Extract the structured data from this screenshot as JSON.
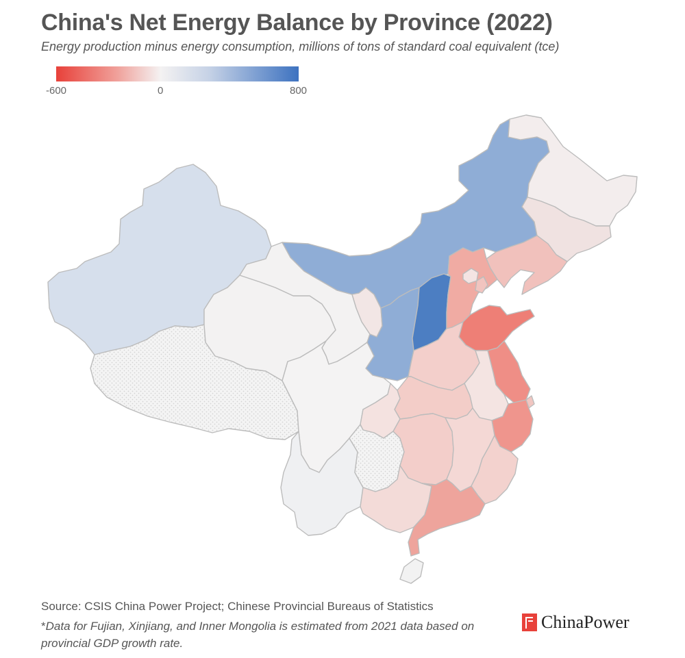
{
  "header": {
    "title": "China's Net Energy Balance by Province (2022)",
    "subtitle": "Energy production minus energy consumption, millions of tons of standard coal equivalent (tce)"
  },
  "legend": {
    "min_label": "-600",
    "mid_label": "0",
    "max_label": "800",
    "min_color": "#e8413a",
    "mid_color": "#f4f2f2",
    "max_color": "#3d72c0"
  },
  "colors": {
    "no_data_fill": "#f4f4f4",
    "no_data_dots": "#d4d4d4",
    "border": "#bcbcbc"
  },
  "map": {
    "provinces": [
      {
        "id": "xinjiang",
        "fill": "#d6dfec"
      },
      {
        "id": "tibet",
        "fill": "nodata"
      },
      {
        "id": "qinghai",
        "fill": "#f3f2f2"
      },
      {
        "id": "gansu",
        "fill": "#f3f2f2"
      },
      {
        "id": "inner-mongolia",
        "fill": "#8fadd6"
      },
      {
        "id": "heilongjiang",
        "fill": "#f3eded"
      },
      {
        "id": "jilin",
        "fill": "#f0e2e1"
      },
      {
        "id": "liaoning",
        "fill": "#f1c1bc"
      },
      {
        "id": "ningxia",
        "fill": "#f2e6e5"
      },
      {
        "id": "shaanxi",
        "fill": "#8fadd6"
      },
      {
        "id": "shanxi",
        "fill": "#4c7ec2"
      },
      {
        "id": "hebei",
        "fill": "#f0aba3"
      },
      {
        "id": "beijing",
        "fill": "#f4e4e3"
      },
      {
        "id": "tianjin",
        "fill": "#f1c4bf"
      },
      {
        "id": "shandong",
        "fill": "#ee7f76"
      },
      {
        "id": "henan",
        "fill": "#f3cfcb"
      },
      {
        "id": "jiangsu",
        "fill": "#ef8e86"
      },
      {
        "id": "anhui",
        "fill": "#f4e4e2"
      },
      {
        "id": "shanghai",
        "fill": "#f1c6c1"
      },
      {
        "id": "zhejiang",
        "fill": "#ef958d"
      },
      {
        "id": "hubei",
        "fill": "#f3cdc8"
      },
      {
        "id": "sichuan",
        "fill": "#f4f3f3"
      },
      {
        "id": "chongqing",
        "fill": "#f4e2e0"
      },
      {
        "id": "yunnan",
        "fill": "#eff0f2"
      },
      {
        "id": "guizhou",
        "fill": "nodata"
      },
      {
        "id": "hunan",
        "fill": "#f3ceca"
      },
      {
        "id": "jiangxi",
        "fill": "#f4d8d5"
      },
      {
        "id": "fujian",
        "fill": "#f3d2ce"
      },
      {
        "id": "guangxi",
        "fill": "#f3dbd8"
      },
      {
        "id": "guangdong",
        "fill": "#eea49c"
      },
      {
        "id": "hainan",
        "fill": "#f2f2f2"
      }
    ]
  },
  "footer": {
    "source": "Source: CSIS China Power Project; Chinese Provincial Bureaus of Statistics",
    "footnote_mark": "*",
    "footnote": "Data for Fujian, Xinjiang, and Inner Mongolia is estimated from 2021 data based on provincial GDP growth rate.",
    "brand": "ChinaPower",
    "brand_icon": "chinapower-logo-icon"
  }
}
